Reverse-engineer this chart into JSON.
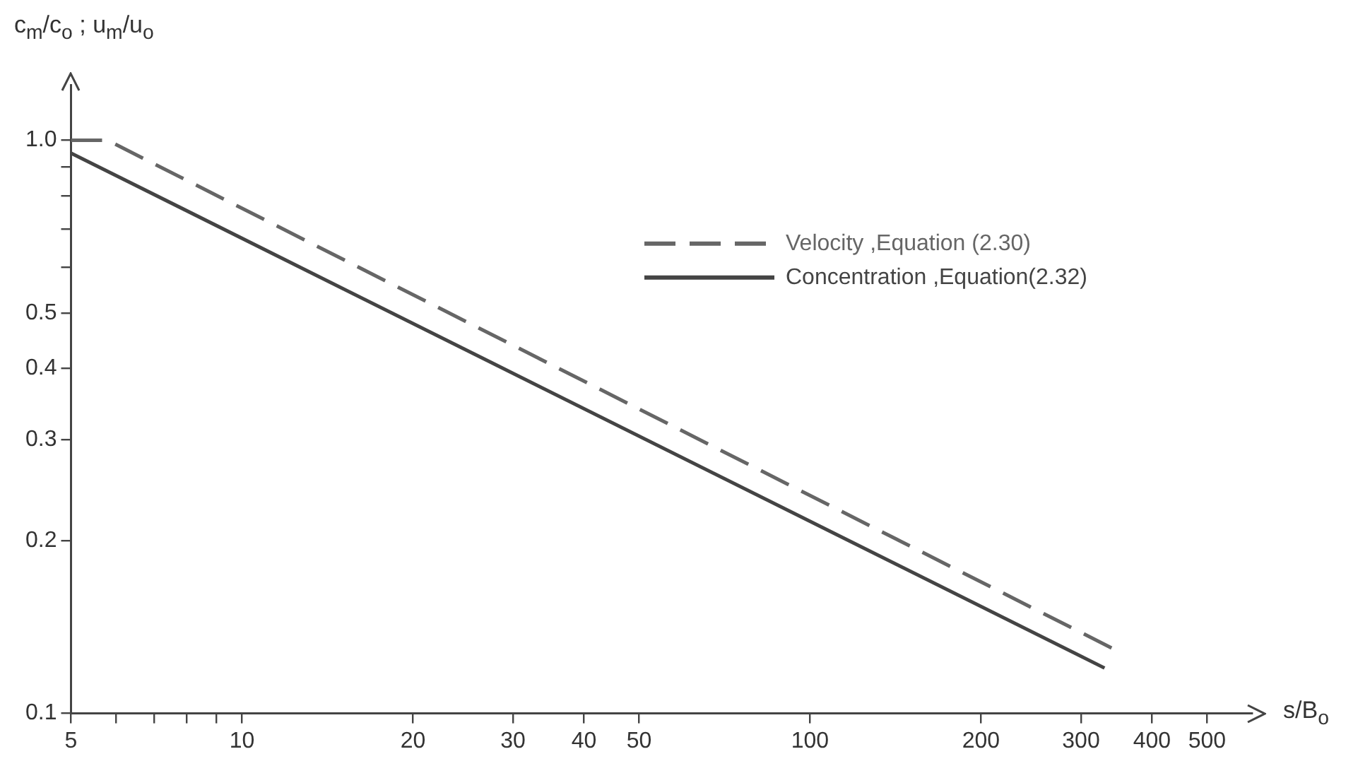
{
  "chart_data": {
    "type": "line",
    "xlabel": "s/B$_{o}$",
    "ylabel": "c$_{m}$/c$_{o}$ ; u$_{m}$/u$_{o}$",
    "log": "xy",
    "grid": false,
    "legend": "right",
    "marker": "none",
    "xlim": [
      5,
      600
    ],
    "xticks": [
      5,
      {
        "value": 6,
        "label": null
      },
      {
        "value": 7,
        "label": null
      },
      {
        "value": 8,
        "label": null
      },
      {
        "value": 9,
        "label": null
      },
      10,
      20,
      30,
      40,
      50,
      100,
      200,
      300,
      400,
      500
    ],
    "ylim": [
      0.1,
      1.25
    ],
    "yticks": [
      {
        "value": 0.1,
        "label": "0.1"
      },
      {
        "value": 0.2,
        "label": "0.2"
      },
      {
        "value": 0.3,
        "label": "0.3"
      },
      {
        "value": 0.4,
        "label": "0.4"
      },
      {
        "value": 0.5,
        "label": "0.5"
      },
      {
        "value": 0.6,
        "label": null
      },
      {
        "value": 0.7,
        "label": null
      },
      {
        "value": 0.8,
        "label": null
      },
      {
        "value": 0.9,
        "label": null
      },
      {
        "value": 1.0,
        "label": "1.0"
      }
    ],
    "series": [
      {
        "name": "Velocity ,Equation (2.30)",
        "color": "#666666",
        "line_style": "dashed",
        "x": [
          5,
          5.8,
          340
        ],
        "values": [
          1.0,
          1.0,
          0.13
        ]
      },
      {
        "name": "Concentration ,Equation(2.32)",
        "color": "#444444",
        "line_style": "solid",
        "x": [
          5,
          330
        ],
        "values": [
          0.95,
          0.12
        ]
      }
    ]
  }
}
